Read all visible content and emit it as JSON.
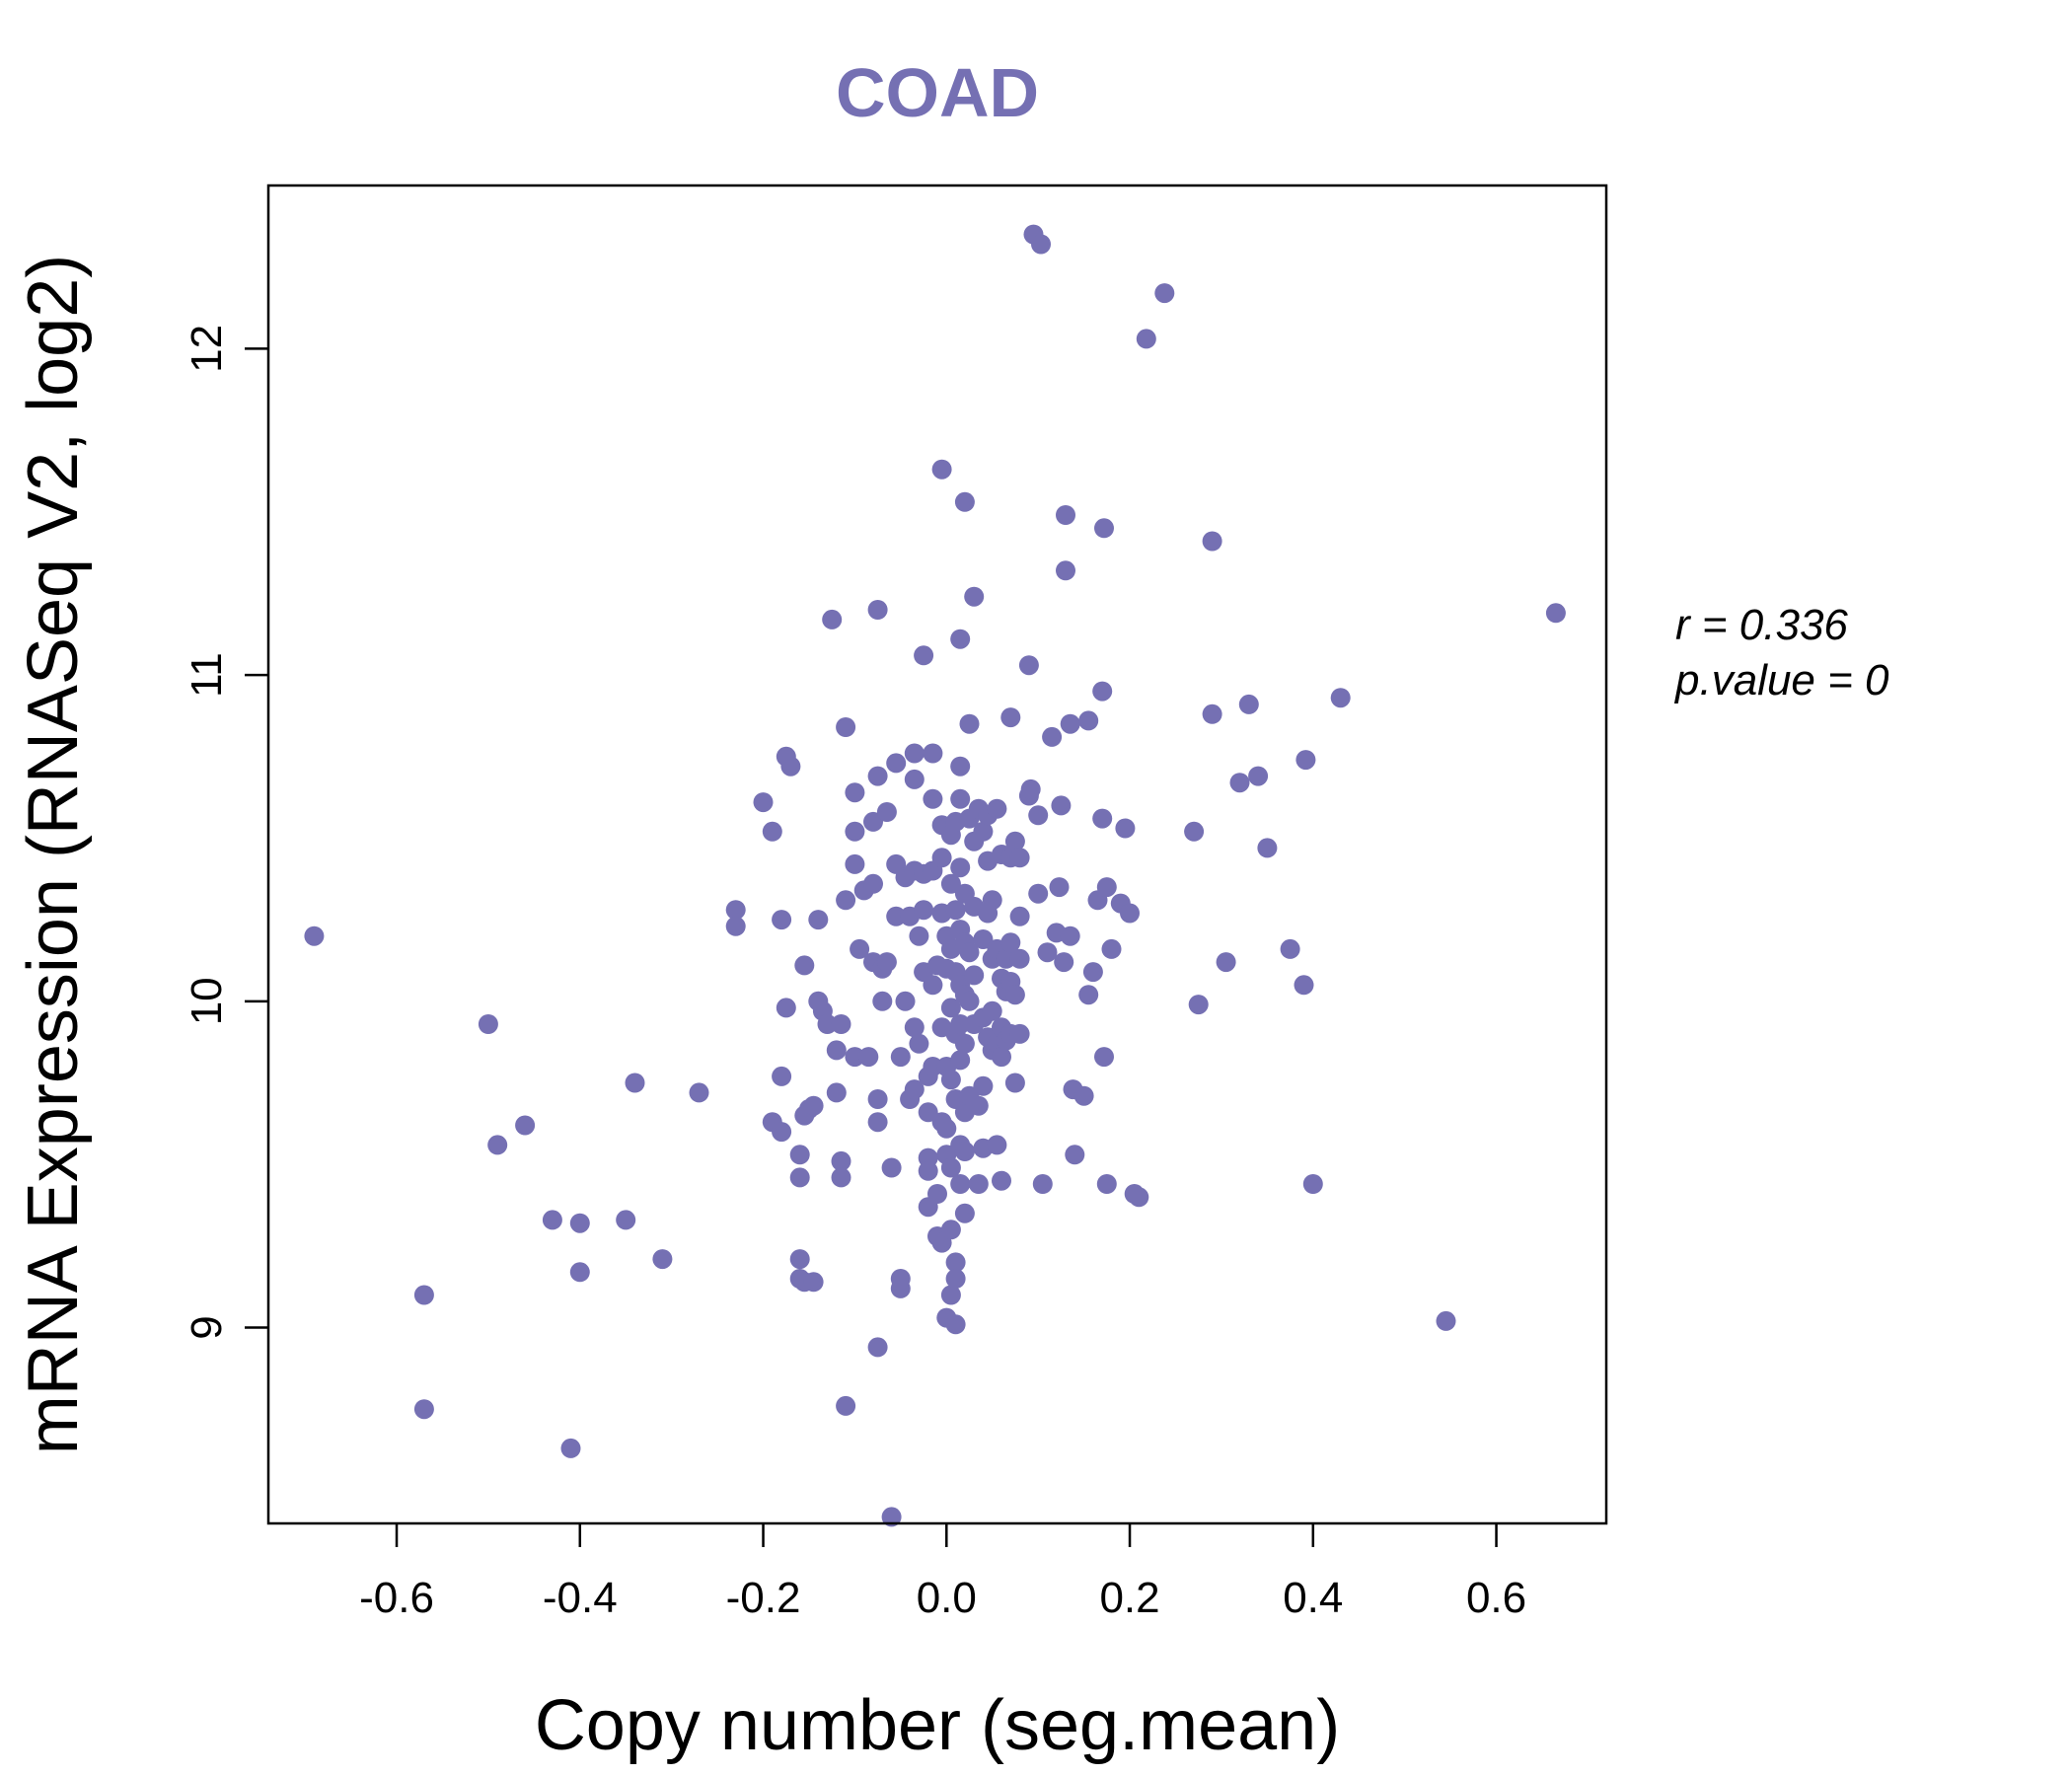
{
  "colors": {
    "accent": "#7570b3",
    "axis": "#000000",
    "background": "#ffffff"
  },
  "stats": {
    "r_line": "r = 0.336",
    "p_line": "p.value = 0"
  },
  "chart_data": {
    "type": "scatter",
    "title": "COAD",
    "xlabel": "Copy number (seg.mean)",
    "ylabel": "mRNA Expression (RNASeq V2, log2)",
    "xlim": [
      -0.74,
      0.72
    ],
    "ylim": [
      8.4,
      12.5
    ],
    "x_ticks": [
      -0.6,
      -0.4,
      -0.2,
      0.0,
      0.2,
      0.4,
      0.6
    ],
    "x_tick_labels": [
      "-0.6",
      "-0.4",
      "-0.2",
      "0.0",
      "0.2",
      "0.4",
      "0.6"
    ],
    "y_ticks": [
      9,
      10,
      11,
      12
    ],
    "y_tick_labels": [
      "9",
      "10",
      "11",
      "12"
    ],
    "points": [
      [
        -0.69,
        10.2
      ],
      [
        -0.57,
        9.1
      ],
      [
        -0.57,
        8.75
      ],
      [
        -0.5,
        9.93
      ],
      [
        -0.49,
        9.56
      ],
      [
        -0.46,
        9.62
      ],
      [
        -0.43,
        9.33
      ],
      [
        -0.41,
        8.63
      ],
      [
        -0.4,
        9.32
      ],
      [
        -0.4,
        9.17
      ],
      [
        -0.35,
        9.33
      ],
      [
        -0.34,
        9.75
      ],
      [
        -0.31,
        9.21
      ],
      [
        -0.27,
        9.72
      ],
      [
        -0.23,
        10.28
      ],
      [
        -0.23,
        10.23
      ],
      [
        -0.2,
        10.61
      ],
      [
        -0.19,
        10.52
      ],
      [
        -0.19,
        9.63
      ],
      [
        -0.18,
        9.6
      ],
      [
        -0.18,
        9.77
      ],
      [
        -0.18,
        10.25
      ],
      [
        -0.175,
        10.75
      ],
      [
        -0.17,
        10.72
      ],
      [
        -0.175,
        9.98
      ],
      [
        -0.16,
        9.15
      ],
      [
        -0.16,
        9.21
      ],
      [
        -0.16,
        9.53
      ],
      [
        -0.16,
        9.46
      ],
      [
        -0.155,
        9.14
      ],
      [
        -0.15,
        9.67
      ],
      [
        -0.155,
        9.65
      ],
      [
        -0.155,
        10.11
      ],
      [
        -0.145,
        9.68
      ],
      [
        -0.145,
        9.14
      ],
      [
        -0.14,
        10.25
      ],
      [
        -0.14,
        10.0
      ],
      [
        -0.135,
        9.97
      ],
      [
        -0.13,
        9.93
      ],
      [
        -0.125,
        11.17
      ],
      [
        -0.12,
        9.72
      ],
      [
        -0.12,
        9.85
      ],
      [
        -0.115,
        9.51
      ],
      [
        -0.115,
        9.46
      ],
      [
        -0.115,
        9.93
      ],
      [
        -0.11,
        10.31
      ],
      [
        -0.11,
        10.84
      ],
      [
        -0.11,
        8.76
      ],
      [
        -0.1,
        10.52
      ],
      [
        -0.1,
        10.64
      ],
      [
        -0.1,
        10.42
      ],
      [
        -0.1,
        9.83
      ],
      [
        -0.095,
        10.16
      ],
      [
        -0.09,
        10.34
      ],
      [
        -0.085,
        9.83
      ],
      [
        -0.08,
        10.55
      ],
      [
        -0.08,
        10.12
      ],
      [
        -0.08,
        10.36
      ],
      [
        -0.075,
        11.2
      ],
      [
        -0.075,
        10.69
      ],
      [
        -0.075,
        9.7
      ],
      [
        -0.075,
        9.63
      ],
      [
        -0.075,
        8.94
      ],
      [
        -0.07,
        10.0
      ],
      [
        -0.07,
        10.1
      ],
      [
        -0.065,
        10.12
      ],
      [
        -0.065,
        10.58
      ],
      [
        -0.06,
        8.42
      ],
      [
        -0.06,
        9.49
      ],
      [
        -0.055,
        10.42
      ],
      [
        -0.055,
        10.73
      ],
      [
        -0.055,
        10.26
      ],
      [
        -0.05,
        9.15
      ],
      [
        -0.05,
        9.12
      ],
      [
        -0.05,
        9.83
      ],
      [
        -0.045,
        10.38
      ],
      [
        -0.045,
        10.0
      ],
      [
        -0.04,
        10.26
      ],
      [
        -0.04,
        9.7
      ],
      [
        -0.035,
        10.76
      ],
      [
        -0.035,
        10.68
      ],
      [
        -0.035,
        10.4
      ],
      [
        -0.035,
        9.92
      ],
      [
        -0.035,
        9.73
      ],
      [
        -0.03,
        10.2
      ],
      [
        -0.03,
        9.87
      ],
      [
        -0.025,
        11.06
      ],
      [
        -0.025,
        10.39
      ],
      [
        -0.025,
        10.28
      ],
      [
        -0.025,
        10.09
      ],
      [
        -0.02,
        9.77
      ],
      [
        -0.02,
        9.66
      ],
      [
        -0.02,
        9.52
      ],
      [
        -0.02,
        9.37
      ],
      [
        -0.02,
        9.48
      ],
      [
        -0.015,
        10.76
      ],
      [
        -0.015,
        10.62
      ],
      [
        -0.015,
        10.4
      ],
      [
        -0.015,
        10.05
      ],
      [
        -0.015,
        9.8
      ],
      [
        -0.01,
        10.11
      ],
      [
        -0.01,
        9.28
      ],
      [
        -0.01,
        9.41
      ],
      [
        -0.005,
        11.63
      ],
      [
        -0.005,
        10.54
      ],
      [
        -0.005,
        10.44
      ],
      [
        -0.005,
        10.27
      ],
      [
        -0.005,
        9.92
      ],
      [
        -0.005,
        9.63
      ],
      [
        -0.005,
        9.26
      ],
      [
        0.0,
        10.2
      ],
      [
        0.0,
        10.1
      ],
      [
        0.0,
        9.8
      ],
      [
        0.0,
        9.61
      ],
      [
        0.0,
        9.53
      ],
      [
        0.0,
        9.03
      ],
      [
        0.005,
        10.51
      ],
      [
        0.005,
        10.36
      ],
      [
        0.005,
        10.16
      ],
      [
        0.005,
        9.98
      ],
      [
        0.005,
        9.76
      ],
      [
        0.005,
        9.49
      ],
      [
        0.005,
        9.3
      ],
      [
        0.005,
        9.1
      ],
      [
        0.01,
        10.55
      ],
      [
        0.01,
        10.28
      ],
      [
        0.01,
        10.09
      ],
      [
        0.01,
        9.9
      ],
      [
        0.01,
        9.7
      ],
      [
        0.01,
        9.2
      ],
      [
        0.01,
        9.15
      ],
      [
        0.01,
        9.01
      ],
      [
        0.015,
        11.11
      ],
      [
        0.015,
        10.72
      ],
      [
        0.015,
        10.62
      ],
      [
        0.015,
        10.41
      ],
      [
        0.015,
        10.22
      ],
      [
        0.015,
        10.05
      ],
      [
        0.015,
        9.93
      ],
      [
        0.015,
        9.82
      ],
      [
        0.015,
        9.56
      ],
      [
        0.015,
        9.44
      ],
      [
        0.02,
        11.53
      ],
      [
        0.02,
        10.33
      ],
      [
        0.02,
        10.18
      ],
      [
        0.02,
        10.02
      ],
      [
        0.02,
        9.87
      ],
      [
        0.02,
        9.66
      ],
      [
        0.02,
        9.54
      ],
      [
        0.02,
        9.35
      ],
      [
        0.025,
        10.85
      ],
      [
        0.025,
        10.56
      ],
      [
        0.025,
        10.15
      ],
      [
        0.025,
        10.0
      ],
      [
        0.025,
        9.71
      ],
      [
        0.03,
        11.24
      ],
      [
        0.03,
        10.49
      ],
      [
        0.03,
        10.29
      ],
      [
        0.03,
        10.08
      ],
      [
        0.03,
        9.93
      ],
      [
        0.035,
        10.59
      ],
      [
        0.035,
        9.68
      ],
      [
        0.035,
        9.44
      ],
      [
        0.04,
        10.52
      ],
      [
        0.04,
        10.19
      ],
      [
        0.04,
        9.95
      ],
      [
        0.04,
        9.74
      ],
      [
        0.04,
        9.55
      ],
      [
        0.045,
        10.57
      ],
      [
        0.045,
        10.43
      ],
      [
        0.045,
        10.27
      ],
      [
        0.045,
        9.89
      ],
      [
        0.05,
        10.31
      ],
      [
        0.05,
        10.13
      ],
      [
        0.05,
        9.97
      ],
      [
        0.05,
        9.85
      ],
      [
        0.055,
        10.59
      ],
      [
        0.055,
        10.16
      ],
      [
        0.055,
        9.87
      ],
      [
        0.055,
        9.56
      ],
      [
        0.06,
        10.45
      ],
      [
        0.06,
        10.07
      ],
      [
        0.06,
        9.92
      ],
      [
        0.06,
        9.83
      ],
      [
        0.06,
        9.45
      ],
      [
        0.065,
        10.13
      ],
      [
        0.065,
        10.03
      ],
      [
        0.065,
        9.88
      ],
      [
        0.07,
        10.87
      ],
      [
        0.07,
        10.44
      ],
      [
        0.07,
        10.18
      ],
      [
        0.07,
        10.06
      ],
      [
        0.07,
        9.9
      ],
      [
        0.075,
        10.49
      ],
      [
        0.075,
        10.02
      ],
      [
        0.075,
        9.75
      ],
      [
        0.08,
        10.44
      ],
      [
        0.08,
        10.26
      ],
      [
        0.08,
        10.13
      ],
      [
        0.08,
        9.9
      ],
      [
        0.09,
        11.03
      ],
      [
        0.09,
        10.63
      ],
      [
        0.092,
        10.65
      ],
      [
        0.095,
        12.35
      ],
      [
        0.1,
        10.57
      ],
      [
        0.1,
        10.33
      ],
      [
        0.103,
        12.32
      ],
      [
        0.105,
        9.44
      ],
      [
        0.11,
        10.15
      ],
      [
        0.115,
        10.81
      ],
      [
        0.12,
        10.21
      ],
      [
        0.123,
        10.35
      ],
      [
        0.125,
        10.6
      ],
      [
        0.128,
        10.12
      ],
      [
        0.13,
        11.49
      ],
      [
        0.13,
        11.32
      ],
      [
        0.135,
        10.2
      ],
      [
        0.135,
        10.85
      ],
      [
        0.138,
        9.73
      ],
      [
        0.14,
        9.53
      ],
      [
        0.15,
        9.71
      ],
      [
        0.155,
        10.02
      ],
      [
        0.155,
        10.86
      ],
      [
        0.16,
        10.09
      ],
      [
        0.165,
        10.31
      ],
      [
        0.17,
        10.95
      ],
      [
        0.17,
        10.56
      ],
      [
        0.172,
        11.45
      ],
      [
        0.172,
        9.83
      ],
      [
        0.175,
        9.44
      ],
      [
        0.175,
        10.35
      ],
      [
        0.18,
        10.16
      ],
      [
        0.19,
        10.3
      ],
      [
        0.195,
        10.53
      ],
      [
        0.2,
        10.27
      ],
      [
        0.205,
        9.41
      ],
      [
        0.21,
        9.4
      ],
      [
        0.218,
        12.03
      ],
      [
        0.238,
        12.17
      ],
      [
        0.27,
        10.52
      ],
      [
        0.275,
        9.99
      ],
      [
        0.29,
        11.41
      ],
      [
        0.29,
        10.88
      ],
      [
        0.305,
        10.12
      ],
      [
        0.32,
        10.67
      ],
      [
        0.33,
        10.91
      ],
      [
        0.34,
        10.69
      ],
      [
        0.35,
        10.47
      ],
      [
        0.375,
        10.16
      ],
      [
        0.39,
        10.05
      ],
      [
        0.392,
        10.74
      ],
      [
        0.4,
        9.44
      ],
      [
        0.43,
        10.93
      ],
      [
        0.545,
        9.02
      ],
      [
        0.665,
        11.19
      ]
    ]
  }
}
